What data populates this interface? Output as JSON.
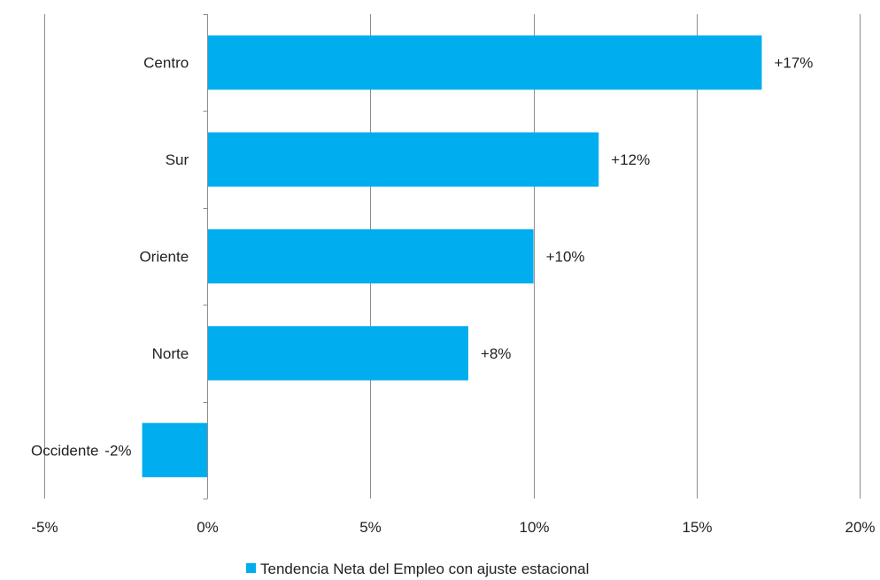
{
  "chart_data": {
    "type": "bar",
    "orientation": "horizontal",
    "categories": [
      "Centro",
      "Sur",
      "Oriente",
      "Norte",
      "Occidente"
    ],
    "series": [
      {
        "name": "Tendencia Neta del Empleo con ajuste estacional",
        "values": [
          17,
          12,
          10,
          8,
          -2
        ],
        "data_labels": [
          "+17%",
          "+12%",
          "+10%",
          "+8%",
          "-2%"
        ],
        "color": "#00aeef"
      }
    ],
    "xlim": [
      -5,
      20
    ],
    "x_ticks": [
      -5,
      0,
      5,
      10,
      15,
      20
    ],
    "x_tick_labels": [
      "-5%",
      "0%",
      "5%",
      "10%",
      "15%",
      "20%"
    ],
    "grid": "vertical",
    "legend_position": "bottom",
    "title": "",
    "xlabel": "",
    "ylabel": ""
  }
}
